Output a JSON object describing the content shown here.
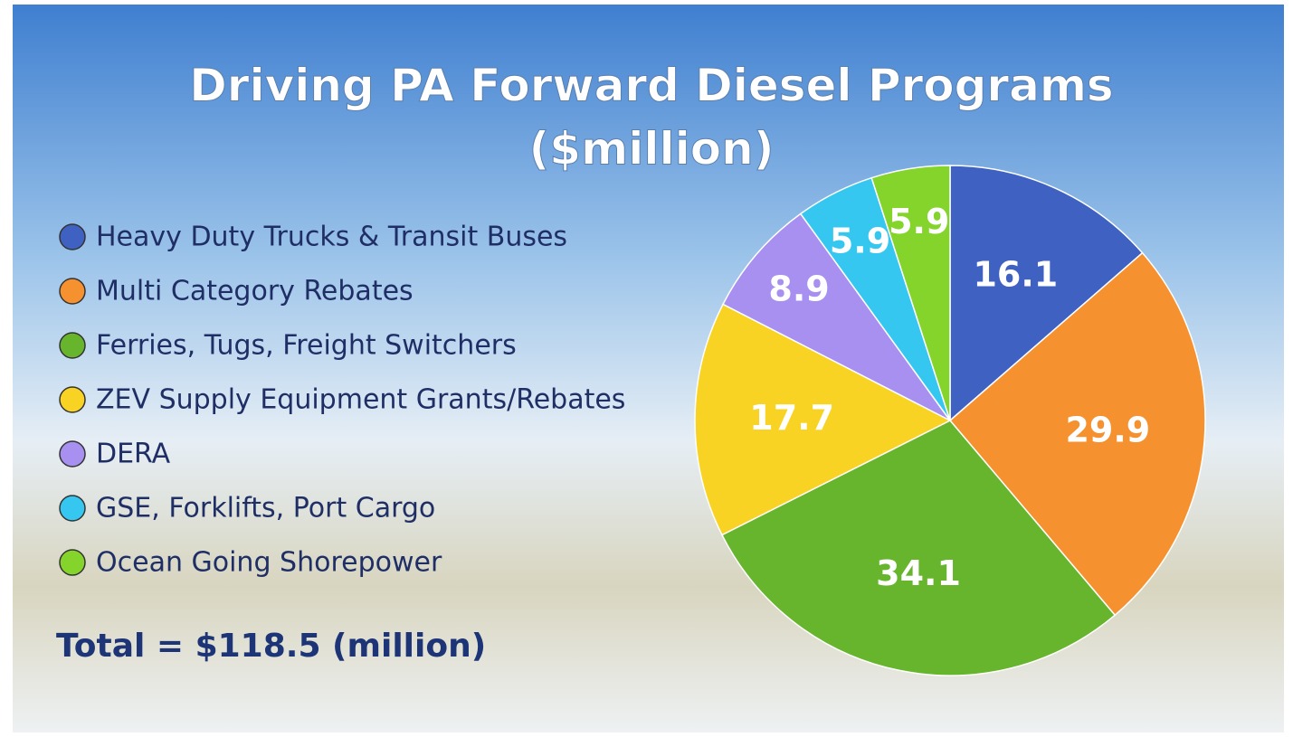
{
  "chart_data": {
    "type": "pie",
    "title": "Driving PA Forward Diesel Programs",
    "subtitle": "($million)",
    "categories": [
      "Heavy Duty Trucks & Transit Buses",
      "Multi Category Rebates",
      "Ferries, Tugs, Freight Switchers",
      "ZEV Supply Equipment Grants/Rebates",
      "DERA",
      "GSE, Forklifts, Port Cargo",
      "Ocean Going Shorepower"
    ],
    "values": [
      16.1,
      29.9,
      34.1,
      17.7,
      8.9,
      5.9,
      5.9
    ],
    "colors": [
      "#3f62c2",
      "#f5922f",
      "#66b52c",
      "#f8d323",
      "#a790f0",
      "#35c7ef",
      "#84d42c"
    ],
    "total": "Total = $118.5 (million)"
  }
}
